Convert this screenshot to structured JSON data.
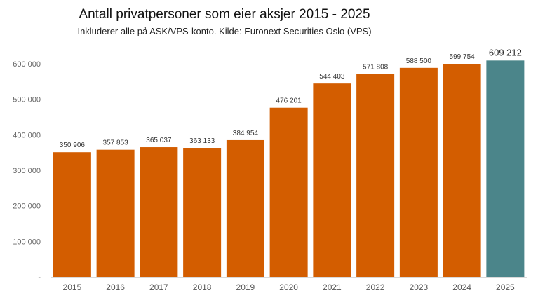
{
  "chart_data": {
    "type": "bar",
    "title": "Antall privatpersoner som eier aksjer 2015 - 2025",
    "subtitle": "Inkluderer alle på ASK/VPS-konto. Kilde: Euronext Securities Oslo (VPS)",
    "categories": [
      "2015",
      "2016",
      "2017",
      "2018",
      "2019",
      "2020",
      "2021",
      "2022",
      "2023",
      "2024",
      "2025"
    ],
    "values": [
      350906,
      357853,
      365037,
      363133,
      384954,
      476201,
      544403,
      571808,
      588500,
      599754,
      609212
    ],
    "value_labels": [
      "350 906",
      "357 853",
      "365 037",
      "363 133",
      "384 954",
      "476 201",
      "544 403",
      "571 808",
      "588 500",
      "599 754",
      "609 212"
    ],
    "ylim": [
      0,
      600000
    ],
    "y_ticks": [
      0,
      100000,
      200000,
      300000,
      400000,
      500000,
      600000
    ],
    "y_tick_labels": [
      "-",
      "100 000",
      "200 000",
      "300 000",
      "400 000",
      "500 000",
      "600 000"
    ],
    "grid": false,
    "colors": {
      "bar": "#d35d00",
      "highlight": "#4b858a",
      "highlight_index": 10
    }
  }
}
